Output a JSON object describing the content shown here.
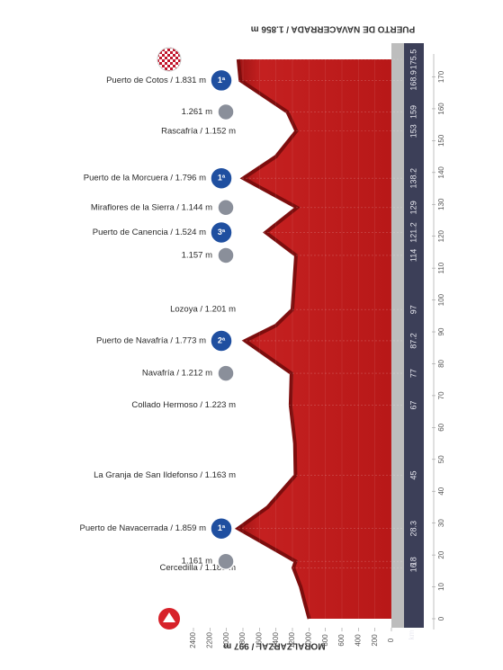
{
  "chart_data": {
    "type": "area",
    "title_start": "MORALZARZAL / 997 m",
    "title_end": "PUERTO DE NAVACERRADA / 1.856 m",
    "x_label": "km",
    "color": "#c41b1b",
    "x": [
      0,
      5,
      10,
      16,
      18,
      28.3,
      35,
      45,
      55,
      67,
      77,
      87.2,
      92,
      97,
      105,
      114,
      121.2,
      129,
      138.2,
      145,
      153,
      159,
      168.9,
      175.5
    ],
    "values": [
      997,
      1050,
      1100,
      1189,
      1161,
      1859,
      1500,
      1163,
      1170,
      1223,
      1212,
      1773,
      1400,
      1201,
      1180,
      1157,
      1524,
      1144,
      1796,
      1400,
      1152,
      1261,
      1831,
      1856
    ],
    "xlim": [
      0,
      175.5
    ],
    "ylim": [
      0,
      2400
    ],
    "xticks": [
      0,
      10,
      20,
      30,
      40,
      50,
      60,
      70,
      80,
      90,
      100,
      110,
      120,
      130,
      140,
      150,
      160,
      170
    ],
    "yticks": [
      0,
      200,
      400,
      600,
      800,
      1000,
      1200,
      1400,
      1600,
      1800,
      2000,
      2200,
      2400
    ],
    "waypoints": [
      {
        "km": 16,
        "label": "Cercedilla / 1.189 m",
        "kind": "place"
      },
      {
        "km": 18,
        "label": "1.161 m",
        "kind": "point"
      },
      {
        "km": 28.3,
        "label": "Puerto de Navacerrada / 1.859 m",
        "kind": "climb",
        "category": "1ª"
      },
      {
        "km": 45,
        "label": "La Granja de San Ildefonso / 1.163 m",
        "kind": "place"
      },
      {
        "km": 67,
        "label": "Collado Hermoso / 1.223 m",
        "kind": "place"
      },
      {
        "km": 77,
        "label": "Navafría / 1.212 m",
        "kind": "point"
      },
      {
        "km": 87.2,
        "label": "Puerto de Navafría / 1.773 m",
        "kind": "climb",
        "category": "2ª"
      },
      {
        "km": 97,
        "label": "Lozoya / 1.201 m",
        "kind": "place"
      },
      {
        "km": 114,
        "label": "1.157 m",
        "kind": "point"
      },
      {
        "km": 121.2,
        "label": "Puerto de Canencia / 1.524 m",
        "kind": "climb",
        "category": "3ª"
      },
      {
        "km": 129,
        "label": "Miraflores de la Sierra / 1.144 m",
        "kind": "point"
      },
      {
        "km": 138.2,
        "label": "Puerto de la Morcuera / 1.796 m",
        "kind": "climb",
        "category": "1ª"
      },
      {
        "km": 153,
        "label": "Rascafría / 1.152 m",
        "kind": "place"
      },
      {
        "km": 159,
        "label": "1.261 m",
        "kind": "point"
      },
      {
        "km": 168.9,
        "label": "Puerto de Cotos / 1.831 m",
        "kind": "climb",
        "category": "1ª"
      },
      {
        "km": 175.5,
        "kind": "finish"
      }
    ]
  }
}
